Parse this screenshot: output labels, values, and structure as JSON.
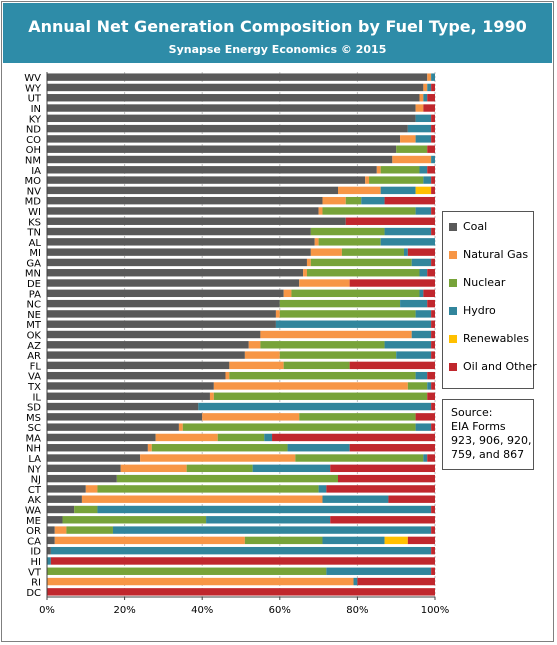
{
  "chart_data": {
    "type": "bar",
    "orientation": "horizontal",
    "stacked": true,
    "title": "Annual Net Generation Composition by Fuel Type, 1990",
    "subtitle": "Synapse Energy Economics © 2015",
    "categories": [
      "WV",
      "WY",
      "UT",
      "IN",
      "KY",
      "ND",
      "CO",
      "OH",
      "NM",
      "IA",
      "MO",
      "NV",
      "MD",
      "WI",
      "KS",
      "TN",
      "AL",
      "MI",
      "GA",
      "MN",
      "DE",
      "PA",
      "NC",
      "NE",
      "MT",
      "OK",
      "AZ",
      "AR",
      "FL",
      "VA",
      "TX",
      "IL",
      "SD",
      "MS",
      "SC",
      "MA",
      "NH",
      "LA",
      "NY",
      "NJ",
      "CT",
      "AK",
      "WA",
      "ME",
      "OR",
      "CA",
      "ID",
      "HI",
      "VT",
      "RI",
      "DC"
    ],
    "series": [
      {
        "name": "Coal",
        "color": "#595959",
        "values": [
          98,
          97,
          96,
          95,
          95,
          93,
          91,
          90,
          89,
          85,
          82,
          75,
          71,
          70,
          77,
          68,
          69,
          68,
          67,
          66,
          65,
          61,
          60,
          59,
          59,
          55,
          52,
          51,
          47,
          46,
          43,
          42,
          39,
          40,
          34,
          28,
          26,
          24,
          19,
          18,
          10,
          9,
          7,
          4,
          2,
          2,
          1,
          0,
          0,
          0,
          0
        ]
      },
      {
        "name": "Natural Gas",
        "color": "#f79646",
        "values": [
          1,
          1,
          1,
          2,
          0,
          0,
          4,
          0,
          10,
          1,
          1,
          11,
          6,
          1,
          0,
          0,
          1,
          8,
          1,
          1,
          13,
          2,
          0,
          1,
          0,
          39,
          3,
          9,
          14,
          1,
          50,
          1,
          0,
          25,
          1,
          16,
          1,
          40,
          17,
          0,
          3,
          62,
          0,
          0,
          3,
          49,
          0,
          0,
          0,
          79,
          0
        ]
      },
      {
        "name": "Nuclear",
        "color": "#77a339",
        "values": [
          0,
          0,
          0,
          0,
          0,
          0,
          0,
          8,
          0,
          10,
          14,
          0,
          4,
          24,
          0,
          19,
          16,
          16,
          26,
          29,
          0,
          33,
          31,
          35,
          0,
          0,
          32,
          30,
          17,
          48,
          5,
          55,
          0,
          30,
          60,
          12,
          35,
          33,
          17,
          57,
          57,
          0,
          6,
          37,
          12,
          20,
          0,
          0,
          72,
          0,
          0
        ]
      },
      {
        "name": "Hydro",
        "color": "#31859c",
        "values": [
          1,
          1,
          1,
          0,
          4,
          6,
          4,
          0,
          1,
          2,
          2,
          9,
          6,
          4,
          0,
          12,
          14,
          1,
          5,
          2,
          0,
          1,
          7,
          4,
          40,
          5,
          12,
          9,
          0,
          3,
          1,
          0,
          60,
          0,
          4,
          2,
          16,
          1,
          20,
          0,
          2,
          17,
          86,
          32,
          82,
          16,
          98,
          1,
          27,
          1,
          0
        ]
      },
      {
        "name": "Renewables",
        "color": "#ffc000",
        "values": [
          0,
          0,
          0,
          0,
          0,
          0,
          0,
          0,
          0,
          0,
          0,
          4,
          0,
          0,
          0,
          0,
          0,
          0,
          0,
          0,
          0,
          0,
          0,
          0,
          0,
          0,
          0,
          0,
          0,
          0,
          0,
          0,
          0,
          0,
          0,
          0,
          0,
          0,
          0,
          0,
          0,
          0,
          0,
          0,
          0,
          6,
          0,
          0,
          0,
          0,
          0
        ]
      },
      {
        "name": "Oil and Other",
        "color": "#c0272d",
        "values": [
          0,
          1,
          2,
          3,
          1,
          1,
          1,
          2,
          0,
          2,
          1,
          1,
          13,
          1,
          23,
          1,
          0,
          7,
          1,
          2,
          22,
          3,
          2,
          1,
          1,
          1,
          1,
          1,
          22,
          2,
          1,
          2,
          1,
          5,
          1,
          42,
          22,
          2,
          27,
          25,
          28,
          12,
          1,
          27,
          1,
          7,
          1,
          99,
          1,
          20,
          100
        ]
      }
    ],
    "x_ticks": [
      "0%",
      "20%",
      "40%",
      "60%",
      "80%",
      "100%"
    ],
    "xlim": [
      0,
      100
    ],
    "legend_placement": "right",
    "grid": true
  },
  "legend": {
    "items": [
      {
        "label": "Coal",
        "color": "#595959"
      },
      {
        "label": "Natural Gas",
        "color": "#f79646"
      },
      {
        "label": "Nuclear",
        "color": "#77a339"
      },
      {
        "label": "Hydro",
        "color": "#31859c"
      },
      {
        "label": "Renewables",
        "color": "#ffc000"
      },
      {
        "label": "Oil and Other",
        "color": "#c0272d"
      }
    ]
  },
  "source_note": "Source:\nEIA Forms\n923, 906, 920,\n759, and 867",
  "colors": {
    "header": "#2e8ca8",
    "grid": "#bfbfbf",
    "axis": "#404040"
  }
}
